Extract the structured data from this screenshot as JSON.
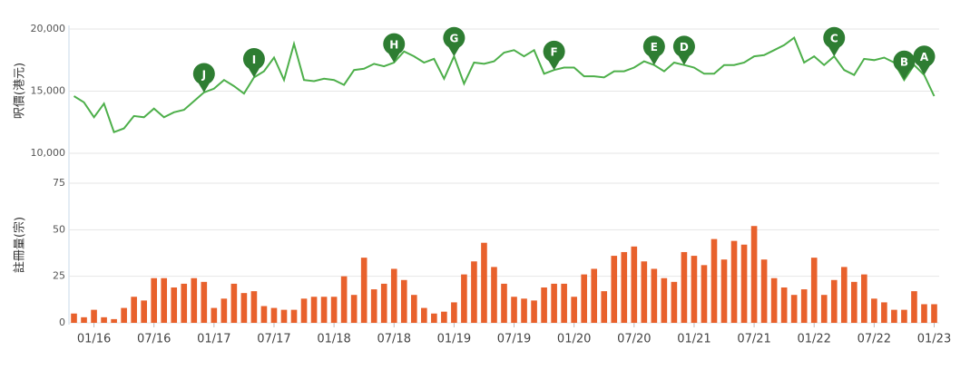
{
  "chart_data": [
    {
      "type": "line",
      "y_title": "呎價(港元)",
      "color": "#4daf4a",
      "grid": true,
      "ylim": [
        10000,
        20000
      ],
      "yticks": [
        {
          "value": 10000,
          "label": "10,000"
        },
        {
          "value": 15000,
          "label": "15,000"
        },
        {
          "value": 20000,
          "label": "20,000"
        }
      ],
      "values": [
        14600,
        14100,
        12900,
        14000,
        11700,
        12000,
        13000,
        12900,
        13600,
        12900,
        13300,
        13500,
        14200,
        14900,
        15200,
        15900,
        15400,
        14800,
        16100,
        16600,
        17700,
        15900,
        18800,
        15900,
        15800,
        16000,
        15900,
        15500,
        16700,
        16800,
        17200,
        17000,
        17300,
        18200,
        17800,
        17300,
        17600,
        16000,
        17800,
        15600,
        17300,
        17200,
        17400,
        18100,
        18300,
        17800,
        18300,
        16400,
        16700,
        16900,
        16900,
        16200,
        16200,
        16100,
        16600,
        16600,
        16900,
        17400,
        17100,
        16600,
        17300,
        17100,
        16900,
        16400,
        16400,
        17100,
        17100,
        17300,
        17800,
        17900,
        18300,
        18700,
        19300,
        17300,
        17800,
        17100,
        17800,
        16700,
        16300,
        17600,
        17500,
        17700,
        17300,
        15900,
        17100,
        16300,
        14600
      ],
      "annotations": [
        {
          "text": "J",
          "point": 13
        },
        {
          "text": "I",
          "point": 18
        },
        {
          "text": "H",
          "point": 32
        },
        {
          "text": "G",
          "point": 38
        },
        {
          "text": "F",
          "point": 48
        },
        {
          "text": "E",
          "point": 58
        },
        {
          "text": "D",
          "point": 61
        },
        {
          "text": "C",
          "point": 76
        },
        {
          "text": "B",
          "point": 83
        },
        {
          "text": "A",
          "point": 85
        }
      ]
    },
    {
      "type": "bar",
      "y_title": "註冊量(宗)",
      "color": "#e8612c",
      "grid": true,
      "ylim": [
        0,
        75
      ],
      "yticks": [
        0,
        25,
        50,
        75
      ],
      "categories": [
        null,
        null,
        "01/16",
        null,
        null,
        null,
        null,
        null,
        "07/16",
        null,
        null,
        null,
        null,
        null,
        "01/17",
        null,
        null,
        null,
        null,
        null,
        "07/17",
        null,
        null,
        null,
        null,
        null,
        "01/18",
        null,
        null,
        null,
        null,
        null,
        "07/18",
        null,
        null,
        null,
        null,
        null,
        "01/19",
        null,
        null,
        null,
        null,
        null,
        "07/19",
        null,
        null,
        null,
        null,
        null,
        "01/20",
        null,
        null,
        null,
        null,
        null,
        "07/20",
        null,
        null,
        null,
        null,
        null,
        "01/21",
        null,
        null,
        null,
        null,
        null,
        "07/21",
        null,
        null,
        null,
        null,
        null,
        "01/22",
        null,
        null,
        null,
        null,
        null,
        "07/22",
        null,
        null,
        null,
        null,
        null,
        "01/23"
      ],
      "values": [
        5,
        3,
        7,
        3,
        2,
        8,
        14,
        12,
        24,
        24,
        19,
        21,
        24,
        22,
        8,
        13,
        21,
        16,
        17,
        9,
        8,
        7,
        7,
        13,
        14,
        14,
        14,
        25,
        15,
        35,
        18,
        21,
        29,
        23,
        15,
        8,
        5,
        6,
        11,
        26,
        33,
        43,
        30,
        21,
        14,
        13,
        12,
        19,
        21,
        21,
        14,
        26,
        29,
        17,
        36,
        38,
        41,
        33,
        29,
        24,
        22,
        38,
        36,
        31,
        45,
        34,
        44,
        42,
        52,
        34,
        24,
        19,
        15,
        18,
        35,
        15,
        23,
        30,
        22,
        26,
        13,
        11,
        7,
        7,
        17,
        10,
        10
      ]
    }
  ]
}
